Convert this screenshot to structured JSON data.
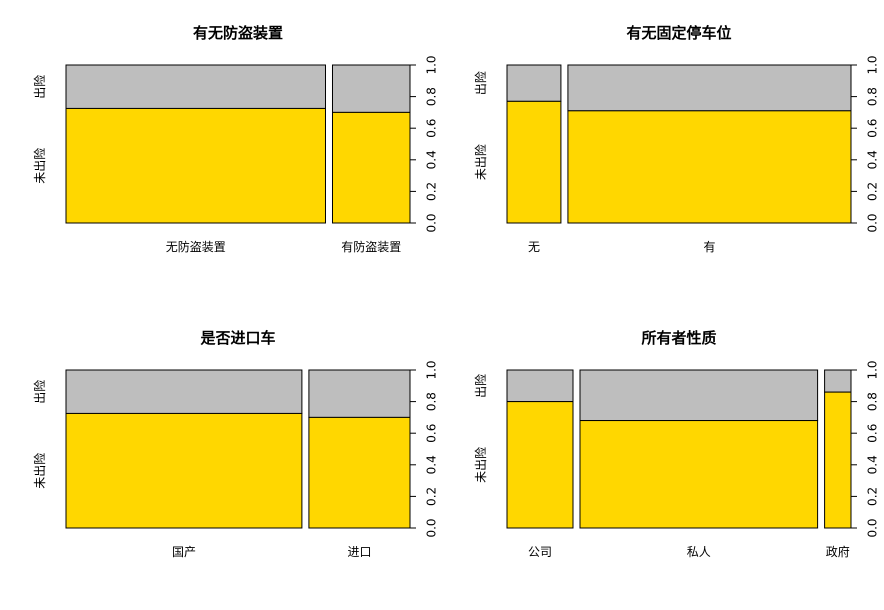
{
  "colors": {
    "lower": "#FFD700",
    "upper": "#BEBEBE"
  },
  "chart_data": [
    {
      "type": "mosaic",
      "title": "有无防盗装置",
      "categories": [
        "无防盗装置",
        "有防盗装置"
      ],
      "widths": [
        0.77,
        0.23
      ],
      "series": [
        {
          "name": "未出险",
          "values": [
            0.725,
            0.7
          ]
        },
        {
          "name": "出险",
          "values": [
            0.275,
            0.3
          ]
        }
      ],
      "ytick_labels": [
        "0.0",
        "0.2",
        "0.4",
        "0.6",
        "0.8",
        "1.0"
      ],
      "ylim": [
        0,
        1
      ]
    },
    {
      "type": "mosaic",
      "title": "有无固定停车位",
      "categories": [
        "无",
        "有"
      ],
      "widths": [
        0.16,
        0.84
      ],
      "series": [
        {
          "name": "未出险",
          "values": [
            0.77,
            0.71
          ]
        },
        {
          "name": "出险",
          "values": [
            0.23,
            0.29
          ]
        }
      ],
      "ytick_labels": [
        "0.0",
        "0.2",
        "0.4",
        "0.6",
        "0.8",
        "1.0"
      ],
      "ylim": [
        0,
        1
      ]
    },
    {
      "type": "mosaic",
      "title": "是否进口车",
      "categories": [
        "国产",
        "进口"
      ],
      "widths": [
        0.7,
        0.3
      ],
      "series": [
        {
          "name": "未出险",
          "values": [
            0.725,
            0.7
          ]
        },
        {
          "name": "出险",
          "values": [
            0.275,
            0.3
          ]
        }
      ],
      "ytick_labels": [
        "0.0",
        "0.2",
        "0.4",
        "0.6",
        "0.8",
        "1.0"
      ],
      "ylim": [
        0,
        1
      ]
    },
    {
      "type": "mosaic",
      "title": "所有者性质",
      "categories": [
        "公司",
        "私人",
        "政府"
      ],
      "widths": [
        0.2,
        0.72,
        0.08
      ],
      "series": [
        {
          "name": "未出险",
          "values": [
            0.8,
            0.68,
            0.86
          ]
        },
        {
          "name": "出险",
          "values": [
            0.2,
            0.32,
            0.14
          ]
        }
      ],
      "ytick_labels": [
        "0.0",
        "0.2",
        "0.4",
        "0.6",
        "0.8",
        "1.0"
      ],
      "ylim": [
        0,
        1
      ]
    }
  ]
}
